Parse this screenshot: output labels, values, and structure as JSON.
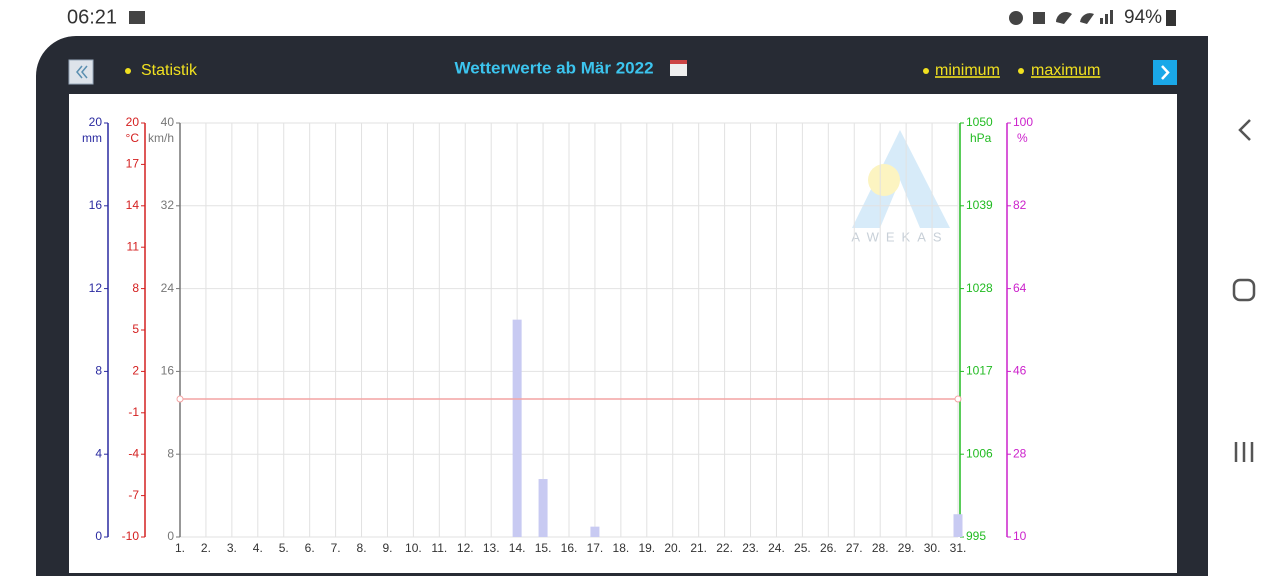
{
  "status_bar": {
    "time": "06:21",
    "battery": "94%"
  },
  "header": {
    "statistics": "Statistik",
    "title": "Wetterwerte ab Mär 2022",
    "minimum": "minimum",
    "maximum": "maximum"
  },
  "chart_data": {
    "type": "bar",
    "watermark": "AWEKAS",
    "categories": [
      "1.",
      "2.",
      "3.",
      "4.",
      "5.",
      "6.",
      "7.",
      "8.",
      "9.",
      "10.",
      "11.",
      "12.",
      "13.",
      "14.",
      "15.",
      "16.",
      "17.",
      "18.",
      "19.",
      "20.",
      "21.",
      "22.",
      "23.",
      "24.",
      "25.",
      "26.",
      "27.",
      "28.",
      "29.",
      "30.",
      "31."
    ],
    "axes": [
      {
        "unit": "mm",
        "color": "#2a2aa0",
        "ylim": [
          0,
          20
        ],
        "yticks": [
          0,
          4,
          8,
          12,
          16,
          20
        ]
      },
      {
        "unit": "°C",
        "color": "#d42020",
        "ylim": [
          -10,
          20
        ],
        "yticks": [
          -10,
          -7,
          -4,
          -1,
          2,
          5,
          8,
          11,
          14,
          17,
          20
        ]
      },
      {
        "unit": "km/h",
        "color": "#777777",
        "ylim": [
          0,
          40
        ],
        "yticks": [
          0,
          8,
          16,
          24,
          32,
          40
        ],
        "grid": true
      },
      {
        "unit": "hPa",
        "color": "#22bb22",
        "ylim": [
          995,
          1050
        ],
        "yticks": [
          995,
          1006,
          1017,
          1028,
          1039,
          1050
        ]
      },
      {
        "unit": "%",
        "color": "#cc22cc",
        "ylim": [
          10,
          100
        ],
        "yticks": [
          10,
          28,
          46,
          64,
          82,
          100
        ]
      }
    ],
    "series": [
      {
        "type": "bar",
        "axis": 0,
        "color": "#c8caf2",
        "values": [
          0,
          0,
          0,
          0,
          0,
          0,
          0,
          0,
          0,
          0,
          0,
          0,
          0,
          10.5,
          2.8,
          0,
          0.5,
          0,
          0,
          0,
          0,
          0,
          0,
          0,
          0,
          0,
          0,
          0,
          0,
          0,
          1.1
        ]
      },
      {
        "type": "line",
        "axis": 1,
        "color": "#f4a4a4",
        "values": [
          0,
          0,
          0,
          0,
          0,
          0,
          0,
          0,
          0,
          0,
          0,
          0,
          0,
          0,
          0,
          0,
          0,
          0,
          0,
          0,
          0,
          0,
          0,
          0,
          0,
          0,
          0,
          0,
          0,
          0,
          0
        ]
      }
    ]
  }
}
